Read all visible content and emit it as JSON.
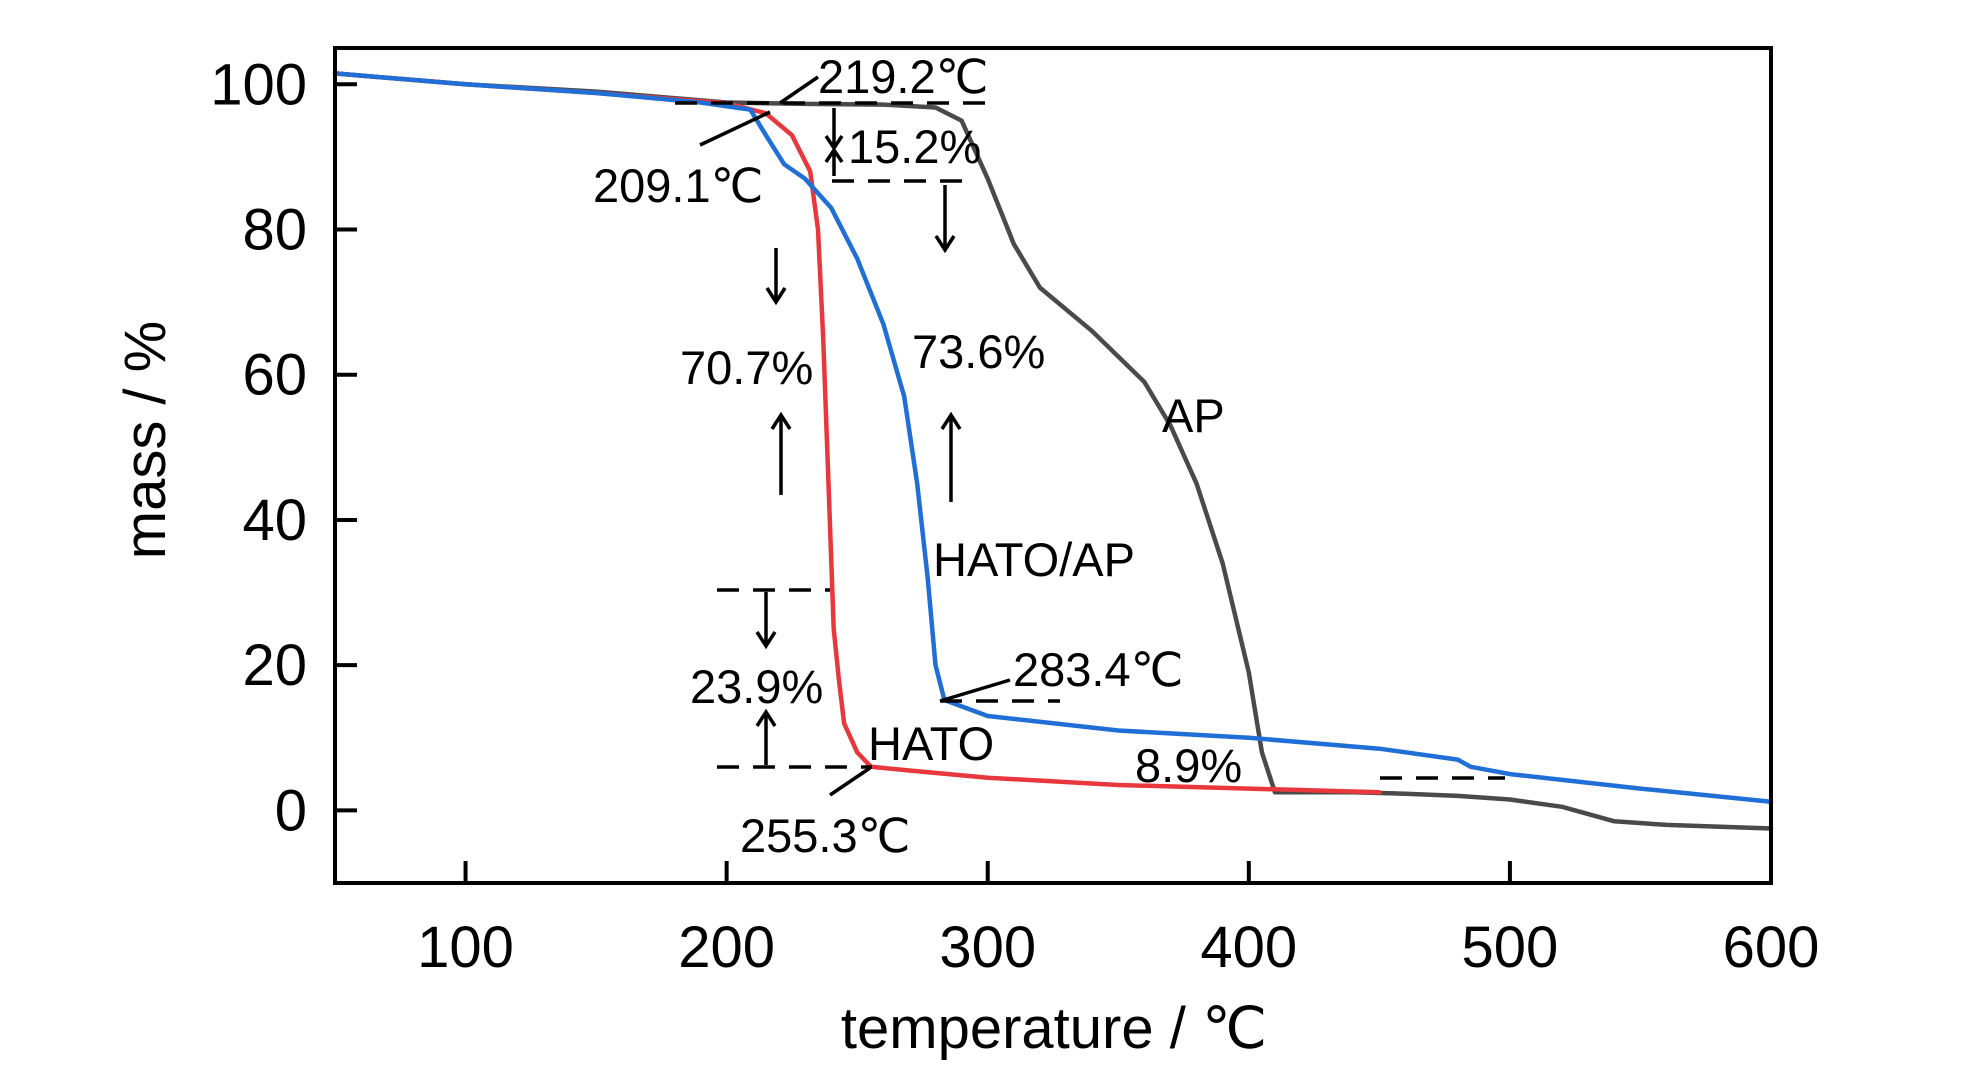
{
  "chart_data": {
    "type": "line",
    "title": "",
    "xlabel": "temperature / ℃",
    "ylabel": "mass / %",
    "xlim": [
      50,
      600
    ],
    "ylim": [
      -10,
      105
    ],
    "xticks": [
      100,
      200,
      300,
      400,
      500,
      600
    ],
    "yticks": [
      0,
      20,
      40,
      60,
      80,
      100
    ],
    "xtick_labels": [
      "100",
      "200",
      "300",
      "400",
      "500",
      "600"
    ],
    "ytick_labels": [
      "0",
      "20",
      "40",
      "60",
      "80",
      "100"
    ],
    "grid": false,
    "colors": {
      "AP": "#4a4a4a",
      "HATO": "#e8383d",
      "HATO/AP": "#1f6fd6",
      "axis": "#000000"
    },
    "series": [
      {
        "name": "AP",
        "x": [
          50,
          100,
          150,
          200,
          230,
          260,
          280,
          290,
          300,
          310,
          320,
          340,
          360,
          370,
          380,
          390,
          400,
          405,
          410,
          440,
          460,
          480,
          500,
          520,
          540,
          560,
          600
        ],
        "y": [
          101.5,
          100,
          99,
          97.5,
          97.3,
          97.2,
          96.8,
          95,
          87,
          78,
          72,
          66,
          59,
          53,
          45,
          34,
          19,
          8,
          2.5,
          2.5,
          2.3,
          2.0,
          1.5,
          0.5,
          -1.5,
          -2,
          -2.5
        ]
      },
      {
        "name": "HATO",
        "x": [
          50,
          100,
          150,
          200,
          215,
          225,
          232,
          235,
          237,
          239,
          241,
          243,
          245,
          250,
          255.3,
          270,
          300,
          350,
          400,
          450
        ],
        "y": [
          101.5,
          100,
          98.8,
          97.4,
          96,
          93,
          88,
          80,
          65,
          45,
          25,
          18,
          12,
          8,
          6,
          5.5,
          4.5,
          3.5,
          3,
          2.5
        ]
      },
      {
        "name": "HATO/AP",
        "x": [
          50,
          100,
          150,
          190,
          209.1,
          215,
          222,
          230,
          240,
          250,
          260,
          268,
          273,
          277,
          280,
          283.4,
          300,
          350,
          400,
          450,
          480,
          485,
          500,
          550,
          600
        ],
        "y": [
          101.5,
          100,
          98.8,
          97.5,
          96.5,
          93,
          89,
          87,
          83,
          76,
          67,
          57,
          45,
          32,
          20,
          15.2,
          13,
          11,
          10,
          8.5,
          7,
          6,
          5,
          3,
          1.2
        ]
      }
    ],
    "labels": [
      {
        "text": "AP",
        "series": "AP"
      },
      {
        "text": "HATO",
        "series": "HATO"
      },
      {
        "text": "HATO/AP",
        "series": "HATO/AP"
      }
    ],
    "annotations": {
      "onset_hato_ap": "209.1℃",
      "onset_hato": "219.2℃",
      "step1_hato_ap": "15.2%",
      "step1_hato": "70.7%",
      "step2_hato_ap": "73.6%",
      "step2_hato": "23.9%",
      "peak_hato_ap": "283.4℃",
      "peak_hato": "255.3℃",
      "residual": "8.9%"
    }
  }
}
